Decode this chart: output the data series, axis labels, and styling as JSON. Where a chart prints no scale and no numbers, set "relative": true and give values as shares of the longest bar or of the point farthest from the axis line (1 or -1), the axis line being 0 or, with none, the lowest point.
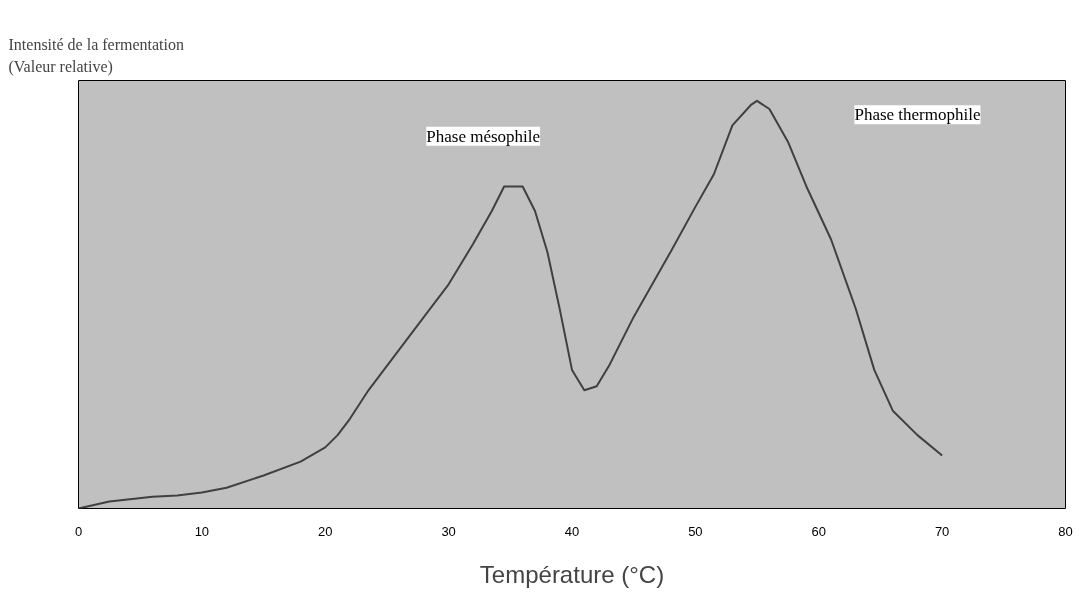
{
  "chart_data": {
    "type": "line",
    "relative": true,
    "ylabel": "Intensité de la fermentation\n(Valeur relative)",
    "xlabel": "Température (°C)",
    "x": [
      0,
      2.5,
      6,
      8,
      10,
      12,
      15,
      18,
      20,
      21,
      22,
      23.5,
      25,
      28,
      30,
      32,
      33.5,
      34.5,
      36,
      37,
      38,
      39,
      40,
      41,
      42,
      43,
      45,
      48,
      50,
      51.5,
      53,
      54.5,
      55,
      56,
      57.5,
      59,
      61,
      63,
      64.5,
      66,
      68,
      70
    ],
    "series": [
      {
        "color": "#404040",
        "values": [
          0,
          0.017,
          0.029,
          0.032,
          0.039,
          0.051,
          0.081,
          0.115,
          0.15,
          0.18,
          0.22,
          0.29,
          0.35,
          0.47,
          0.55,
          0.65,
          0.73,
          0.79,
          0.79,
          0.73,
          0.63,
          0.49,
          0.34,
          0.29,
          0.3,
          0.35,
          0.47,
          0.63,
          0.74,
          0.82,
          0.94,
          0.99,
          1.0,
          0.98,
          0.9,
          0.79,
          0.66,
          0.49,
          0.34,
          0.24,
          0.18,
          0.13
        ]
      }
    ],
    "xlim": [
      0,
      80
    ],
    "xticks": [
      0,
      10,
      20,
      30,
      40,
      50,
      60,
      70,
      80
    ],
    "annotations": [
      "Phase mésophile",
      "Phase thermophile"
    ],
    "grid": false,
    "marker": "none",
    "line_style": "solid"
  }
}
